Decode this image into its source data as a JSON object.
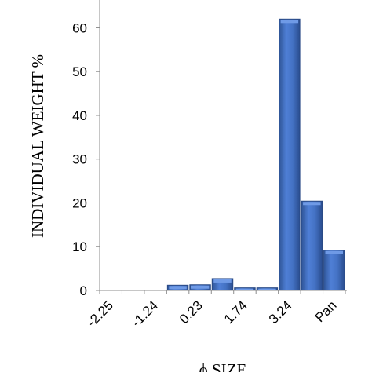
{
  "chart_data": {
    "type": "bar",
    "title": "",
    "xlabel": "ϕ SIZE",
    "ylabel": "INDIVIDUAL WEIGHT %",
    "x_tick_labels": [
      "-2.25",
      "-1.24",
      "0.23",
      "1.74",
      "3.24",
      "Pan"
    ],
    "bins": 11,
    "values": [
      0,
      0,
      0,
      1.2,
      1.3,
      2.7,
      0.6,
      0.6,
      62,
      20.4,
      9.2
    ],
    "ylim": [
      0,
      66
    ],
    "yticks": [
      0,
      10,
      20,
      30,
      40,
      50,
      60
    ],
    "grid": false,
    "legend": "none",
    "bar_color": "#4472c4"
  }
}
